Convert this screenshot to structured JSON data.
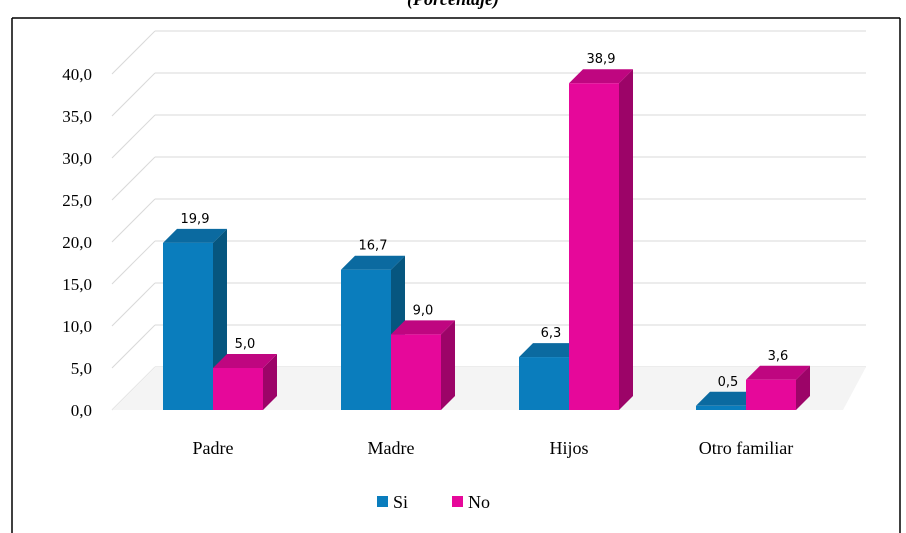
{
  "chart_data": {
    "type": "bar",
    "title": "(Porcentaje)",
    "categories": [
      "Padre",
      "Madre",
      "Hijos",
      "Otro familiar"
    ],
    "series": [
      {
        "name": "Si",
        "values": [
          19.9,
          16.7,
          6.3,
          0.5
        ],
        "labels": [
          "19,9",
          "16,7",
          "6,3",
          "0,5"
        ]
      },
      {
        "name": "No",
        "values": [
          5.0,
          9.0,
          38.9,
          3.6
        ],
        "labels": [
          "5,0",
          "9,0",
          "38,9",
          "3,6"
        ]
      }
    ],
    "y_ticks": [
      "0,0",
      "5,0",
      "10,0",
      "15,0",
      "20,0",
      "25,0",
      "30,0",
      "35,0",
      "40,0"
    ],
    "ylim": [
      0,
      40
    ],
    "grid": true,
    "legend_position": "bottom",
    "style": "3d-column",
    "colors": {
      "Si": "#0a7dbd",
      "Si_side": "#06567f",
      "Si_top": "#0b6aa0",
      "No": "#e6089a",
      "No_side": "#9c0468",
      "No_top": "#bf0680"
    }
  }
}
